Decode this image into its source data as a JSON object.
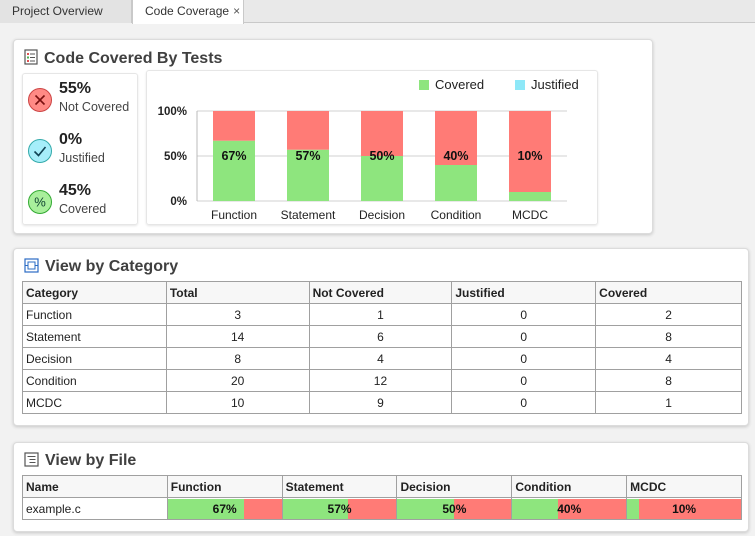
{
  "tabs": [
    {
      "label": "Project Overview",
      "active": false
    },
    {
      "label": "Code Coverage",
      "active": true
    }
  ],
  "coverage_panel": {
    "title": "Code Covered By Tests",
    "summary": [
      {
        "value": "55%",
        "label": "Not Covered",
        "icon": "x-circle-icon",
        "color": "#ff7b76"
      },
      {
        "value": "0%",
        "label": "Justified",
        "icon": "check-circle-icon",
        "color": "#8ee8f8"
      },
      {
        "value": "45%",
        "label": "Covered",
        "icon": "percent-circle-icon",
        "color": "#8ee57e"
      }
    ]
  },
  "chart_data": {
    "type": "bar",
    "stacked": true,
    "categories": [
      "Function",
      "Statement",
      "Decision",
      "Condition",
      "MCDC"
    ],
    "series": [
      {
        "name": "Covered",
        "values": [
          67,
          57,
          50,
          40,
          10
        ],
        "color": "#8ee57e"
      },
      {
        "name": "Justified",
        "values": [
          0,
          0,
          0,
          0,
          0
        ],
        "color": "#8ee8f8"
      },
      {
        "values": [
          33,
          43,
          50,
          60,
          90
        ],
        "color": "#ff7b76"
      }
    ],
    "data_labels": [
      "67%",
      "57%",
      "50%",
      "40%",
      "10%"
    ],
    "yticks": [
      "0%",
      "50%",
      "100%"
    ],
    "ylim": [
      0,
      100
    ],
    "legend": "top-right",
    "grid": true
  },
  "category_panel": {
    "title": "View by Category",
    "columns": [
      "Category",
      "Total",
      "Not Covered",
      "Justified",
      "Covered"
    ],
    "rows": [
      [
        "Function",
        "3",
        "1",
        "0",
        "2"
      ],
      [
        "Statement",
        "14",
        "6",
        "0",
        "8"
      ],
      [
        "Decision",
        "8",
        "4",
        "0",
        "4"
      ],
      [
        "Condition",
        "20",
        "12",
        "0",
        "8"
      ],
      [
        "MCDC",
        "10",
        "9",
        "0",
        "1"
      ]
    ]
  },
  "file_panel": {
    "title": "View by File",
    "columns": [
      "Name",
      "Function",
      "Statement",
      "Decision",
      "Condition",
      "MCDC"
    ],
    "rows": [
      {
        "name": "example.c",
        "values": [
          67,
          57,
          50,
          40,
          10
        ],
        "labels": [
          "67%",
          "57%",
          "50%",
          "40%",
          "10%"
        ]
      }
    ]
  }
}
